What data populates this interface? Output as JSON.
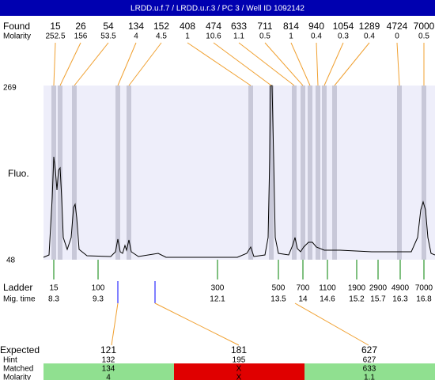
{
  "header": {
    "title": "LRDD.u.f.7 / LRDD.u.r.3 / PC 3 / Well ID 1092142"
  },
  "found": {
    "label": "Found",
    "molarity_label": "Molarity",
    "peaks": [
      {
        "size": 15,
        "molarity": 252.5
      },
      {
        "size": 26,
        "molarity": 156
      },
      {
        "size": 54,
        "molarity": 53.5
      },
      {
        "size": 134,
        "molarity": 4
      },
      {
        "size": 152,
        "molarity": 4.5
      },
      {
        "size": 408,
        "molarity": 1
      },
      {
        "size": 474,
        "molarity": 10.6
      },
      {
        "size": 633,
        "molarity": 1.1
      },
      {
        "size": 711,
        "molarity": 0.5
      },
      {
        "size": 814,
        "molarity": 1
      },
      {
        "size": 940,
        "molarity": 0.4
      },
      {
        "size": 1054,
        "molarity": 0.3
      },
      {
        "size": 1289,
        "molarity": 0.4
      },
      {
        "size": 4724,
        "molarity": 0
      },
      {
        "size": 7000,
        "molarity": 0.5
      }
    ]
  },
  "plot": {
    "y_label": "Fluo.",
    "y_max": 269,
    "y_min": 48
  },
  "ladder": {
    "label": "Ladder",
    "time_label": "Mig. time",
    "items": [
      {
        "size": 15,
        "time": 8.3
      },
      {
        "size": 100,
        "time": 9.3
      },
      {
        "size": 300,
        "time": 12.1
      },
      {
        "size": 500,
        "time": 13.5
      },
      {
        "size": 700,
        "time": 14
      },
      {
        "size": 1100,
        "time": 14.6
      },
      {
        "size": 1900,
        "time": 15.2
      },
      {
        "size": 2900,
        "time": 15.7
      },
      {
        "size": 4900,
        "time": 16.3
      },
      {
        "size": 7000,
        "time": 16.8
      }
    ]
  },
  "expected": {
    "label": "Expected",
    "hint_label": "Hint",
    "matched_label": "Matched",
    "molarity_label": "Molarity",
    "columns": [
      {
        "expected": 121,
        "hint": 132,
        "matched": 134,
        "molarity": 4
      },
      {
        "expected": 181,
        "hint": 195,
        "matched": "X",
        "molarity": "X"
      },
      {
        "expected": 627,
        "hint": 627,
        "matched": 633,
        "molarity": 1.1
      }
    ]
  }
}
